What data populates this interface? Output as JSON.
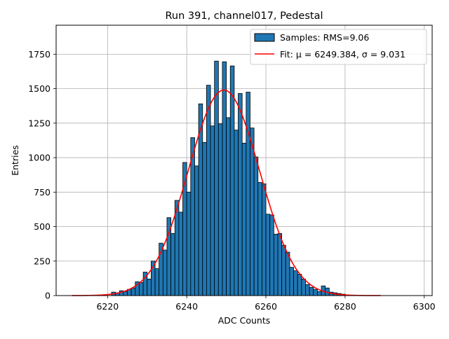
{
  "chart_data": {
    "type": "bar",
    "title": "Run 391, channel017, Pedestal",
    "xlabel": "ADC Counts",
    "ylabel": "Entries",
    "xlim": [
      6207,
      6302
    ],
    "ylim": [
      0,
      1960
    ],
    "xticks": [
      6220,
      6240,
      6260,
      6280,
      6300
    ],
    "yticks": [
      0,
      250,
      500,
      750,
      1000,
      1250,
      1500,
      1750
    ],
    "grid": true,
    "legend_position": "top-right",
    "bin_width": 1,
    "bins_start": 6221,
    "hist_values": [
      25,
      20,
      35,
      30,
      45,
      55,
      100,
      95,
      170,
      120,
      250,
      195,
      380,
      330,
      565,
      450,
      690,
      605,
      965,
      750,
      1145,
      940,
      1390,
      1110,
      1525,
      1230,
      1700,
      1245,
      1695,
      1290,
      1665,
      1200,
      1465,
      1105,
      1475,
      1215,
      1005,
      820,
      810,
      590,
      585,
      445,
      450,
      365,
      315,
      205,
      180,
      155,
      120,
      80,
      60,
      45,
      30,
      70,
      55,
      25,
      20,
      15,
      10
    ],
    "series": [
      {
        "name": "Samples: RMS=9.06",
        "kind": "histogram",
        "color": "#1f77b4"
      },
      {
        "name": "Fit: μ = 6249.384, σ = 9.031",
        "kind": "gaussian_fit",
        "color": "#ff0000",
        "mu": 6249.384,
        "sigma": 9.031,
        "amplitude": 1490,
        "x_range": [
          6211,
          6289
        ]
      }
    ]
  }
}
